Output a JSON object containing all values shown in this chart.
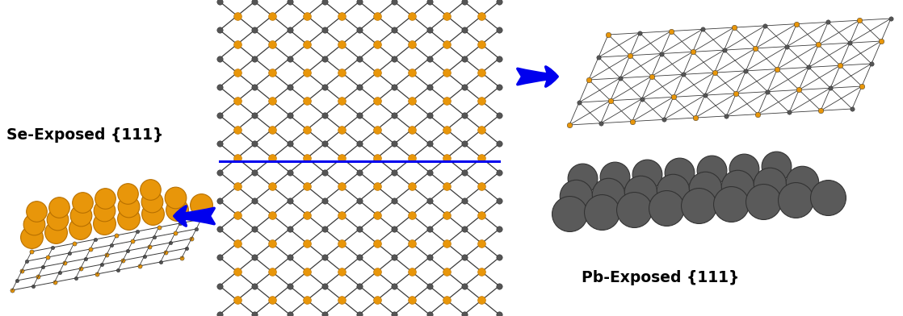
{
  "figsize": [
    11.18,
    3.92
  ],
  "dpi": 100,
  "background_color": "#ffffff",
  "labels": {
    "se_exposed": "Se-Exposed {111}",
    "pb_exposed": "Pb-Exposed {111}"
  },
  "orange": "#E8960A",
  "orange_edge": "#B87000",
  "gray": "#555555",
  "gray_edge": "#333333",
  "gray_light": "#666666",
  "bond_color": "#3a3a3a",
  "blue": "#0000EE"
}
